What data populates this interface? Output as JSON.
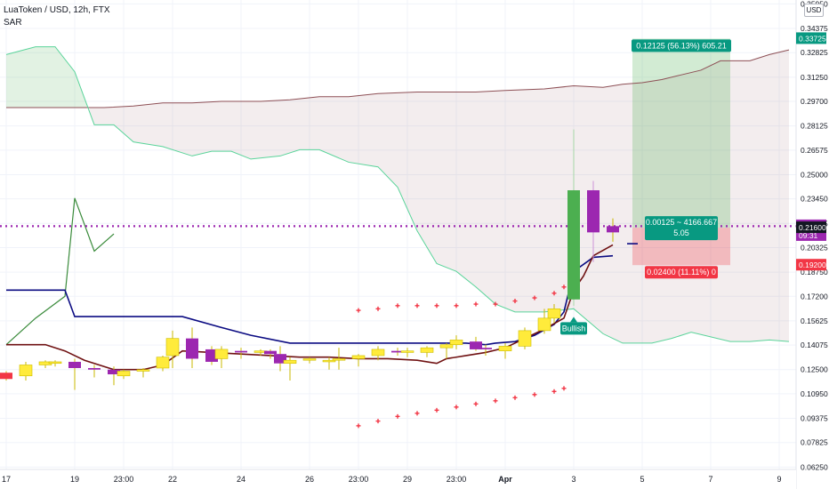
{
  "header": {
    "title": "LuaToken / USD, 12h, FTX",
    "indicator": "SAR",
    "currency_button": "USD"
  },
  "chart_data": {
    "type": "candlestick",
    "symbol": "LuaToken / USD",
    "interval": "12h",
    "exchange": "FTX",
    "y_scale": "linear",
    "ylim": [
      0.061,
      0.362
    ],
    "x_range": [
      0,
      80
    ],
    "grid": true,
    "y_tick_labels": [
      "0.06250",
      "0.07825",
      "0.09375",
      "0.10950",
      "0.12500",
      "0.14075",
      "0.15625",
      "0.17200",
      "0.18750",
      "0.20325",
      "0.21875",
      "0.23450",
      "0.25000",
      "0.26575",
      "0.28125",
      "0.29700",
      "0.31250",
      "0.32825",
      "0.34375",
      "0.35950"
    ],
    "y_tick_values": [
      0.0625,
      0.07825,
      0.09375,
      0.1095,
      0.125,
      0.14075,
      0.15625,
      0.172,
      0.1875,
      0.20325,
      0.21875,
      0.2345,
      0.25,
      0.26575,
      0.28125,
      0.297,
      0.3125,
      0.32825,
      0.34375,
      0.3595
    ],
    "x_tick_labels": [
      {
        "x": 0,
        "label": "17"
      },
      {
        "x": 7,
        "label": "19"
      },
      {
        "x": 12,
        "label": "23:00"
      },
      {
        "x": 17,
        "label": "22"
      },
      {
        "x": 24,
        "label": "24"
      },
      {
        "x": 31,
        "label": "26"
      },
      {
        "x": 36,
        "label": "23:00"
      },
      {
        "x": 41,
        "label": "29"
      },
      {
        "x": 46,
        "label": "23:00"
      },
      {
        "x": 51,
        "label": "Apr"
      },
      {
        "x": 58,
        "label": "3"
      },
      {
        "x": 65,
        "label": "5"
      },
      {
        "x": 72,
        "label": "7"
      },
      {
        "x": 79,
        "label": "9"
      }
    ],
    "candles": [
      {
        "x": 0,
        "o": 0.123,
        "h": 0.124,
        "l": 0.118,
        "c": 0.119
      },
      {
        "x": 2,
        "o": 0.121,
        "h": 0.13,
        "l": 0.118,
        "c": 0.128
      },
      {
        "x": 4,
        "o": 0.128,
        "h": 0.131,
        "l": 0.126,
        "c": 0.13
      },
      {
        "x": 5,
        "o": 0.129,
        "h": 0.131,
        "l": 0.127,
        "c": 0.13
      },
      {
        "x": 7,
        "o": 0.13,
        "h": 0.132,
        "l": 0.112,
        "c": 0.126
      },
      {
        "x": 9,
        "o": 0.126,
        "h": 0.128,
        "l": 0.12,
        "c": 0.125
      },
      {
        "x": 11,
        "o": 0.125,
        "h": 0.127,
        "l": 0.115,
        "c": 0.122
      },
      {
        "x": 12,
        "o": 0.121,
        "h": 0.125,
        "l": 0.119,
        "c": 0.124
      },
      {
        "x": 14,
        "o": 0.124,
        "h": 0.126,
        "l": 0.12,
        "c": 0.125
      },
      {
        "x": 16,
        "o": 0.126,
        "h": 0.134,
        "l": 0.124,
        "c": 0.133
      },
      {
        "x": 17,
        "o": 0.134,
        "h": 0.15,
        "l": 0.126,
        "c": 0.145
      },
      {
        "x": 19,
        "o": 0.145,
        "h": 0.152,
        "l": 0.126,
        "c": 0.132
      },
      {
        "x": 21,
        "o": 0.138,
        "h": 0.14,
        "l": 0.128,
        "c": 0.13
      },
      {
        "x": 22,
        "o": 0.132,
        "h": 0.14,
        "l": 0.126,
        "c": 0.138
      },
      {
        "x": 24,
        "o": 0.137,
        "h": 0.139,
        "l": 0.132,
        "c": 0.136
      },
      {
        "x": 26,
        "o": 0.136,
        "h": 0.138,
        "l": 0.134,
        "c": 0.137
      },
      {
        "x": 27,
        "o": 0.137,
        "h": 0.138,
        "l": 0.132,
        "c": 0.135
      },
      {
        "x": 28,
        "o": 0.135,
        "h": 0.14,
        "l": 0.124,
        "c": 0.129
      },
      {
        "x": 29,
        "o": 0.129,
        "h": 0.133,
        "l": 0.118,
        "c": 0.131
      },
      {
        "x": 31,
        "o": 0.131,
        "h": 0.133,
        "l": 0.129,
        "c": 0.132
      },
      {
        "x": 33,
        "o": 0.13,
        "h": 0.133,
        "l": 0.125,
        "c": 0.131
      },
      {
        "x": 34,
        "o": 0.131,
        "h": 0.139,
        "l": 0.125,
        "c": 0.132
      },
      {
        "x": 36,
        "o": 0.132,
        "h": 0.135,
        "l": 0.127,
        "c": 0.134
      },
      {
        "x": 38,
        "o": 0.134,
        "h": 0.14,
        "l": 0.131,
        "c": 0.138
      },
      {
        "x": 40,
        "o": 0.137,
        "h": 0.139,
        "l": 0.134,
        "c": 0.136
      },
      {
        "x": 41,
        "o": 0.136,
        "h": 0.139,
        "l": 0.133,
        "c": 0.137
      },
      {
        "x": 43,
        "o": 0.136,
        "h": 0.14,
        "l": 0.133,
        "c": 0.139
      },
      {
        "x": 45,
        "o": 0.139,
        "h": 0.142,
        "l": 0.132,
        "c": 0.141
      },
      {
        "x": 46,
        "o": 0.141,
        "h": 0.147,
        "l": 0.138,
        "c": 0.144
      },
      {
        "x": 48,
        "o": 0.143,
        "h": 0.146,
        "l": 0.137,
        "c": 0.138
      },
      {
        "x": 49,
        "o": 0.139,
        "h": 0.141,
        "l": 0.134,
        "c": 0.138
      },
      {
        "x": 51,
        "o": 0.137,
        "h": 0.142,
        "l": 0.132,
        "c": 0.14
      },
      {
        "x": 53,
        "o": 0.14,
        "h": 0.152,
        "l": 0.138,
        "c": 0.15
      },
      {
        "x": 55,
        "o": 0.15,
        "h": 0.164,
        "l": 0.148,
        "c": 0.158
      },
      {
        "x": 56,
        "o": 0.158,
        "h": 0.167,
        "l": 0.155,
        "c": 0.164
      },
      {
        "x": 58,
        "o": 0.17,
        "h": 0.279,
        "l": 0.166,
        "c": 0.24
      },
      {
        "x": 60,
        "o": 0.24,
        "h": 0.246,
        "l": 0.194,
        "c": 0.213
      },
      {
        "x": 62,
        "o": 0.217,
        "h": 0.222,
        "l": 0.207,
        "c": 0.213
      }
    ],
    "series": [
      {
        "role": "cloud_upper",
        "color": "#8d4f55",
        "points": [
          [
            0,
            0.293
          ],
          [
            2,
            0.293
          ],
          [
            4,
            0.293
          ],
          [
            6,
            0.293
          ],
          [
            8,
            0.293
          ],
          [
            10,
            0.293
          ],
          [
            13,
            0.294
          ],
          [
            16,
            0.296
          ],
          [
            19,
            0.296
          ],
          [
            22,
            0.297
          ],
          [
            26,
            0.297
          ],
          [
            29,
            0.298
          ],
          [
            32,
            0.3
          ],
          [
            35,
            0.3
          ],
          [
            38,
            0.302
          ],
          [
            42,
            0.303
          ],
          [
            45,
            0.303
          ],
          [
            48,
            0.303
          ],
          [
            51,
            0.304
          ],
          [
            55,
            0.305
          ],
          [
            58,
            0.307
          ],
          [
            61,
            0.306
          ],
          [
            63,
            0.308
          ],
          [
            65,
            0.309
          ],
          [
            67,
            0.311
          ],
          [
            69,
            0.314
          ],
          [
            71,
            0.317
          ],
          [
            73,
            0.323
          ],
          [
            75,
            0.323
          ],
          [
            76,
            0.323
          ],
          [
            78,
            0.327
          ],
          [
            80,
            0.33
          ]
        ]
      },
      {
        "role": "cloud_lower",
        "color": "#5ad49a",
        "points": [
          [
            0,
            0.327
          ],
          [
            3,
            0.332
          ],
          [
            5,
            0.332
          ],
          [
            7,
            0.316
          ],
          [
            9,
            0.282
          ],
          [
            11,
            0.282
          ],
          [
            13,
            0.271
          ],
          [
            16,
            0.268
          ],
          [
            19,
            0.262
          ],
          [
            21,
            0.265
          ],
          [
            23,
            0.265
          ],
          [
            25,
            0.26
          ],
          [
            28,
            0.262
          ],
          [
            30,
            0.266
          ],
          [
            32,
            0.266
          ],
          [
            35,
            0.258
          ],
          [
            38,
            0.255
          ],
          [
            40,
            0.242
          ],
          [
            42,
            0.214
          ],
          [
            44,
            0.193
          ],
          [
            46,
            0.188
          ],
          [
            48,
            0.178
          ],
          [
            50,
            0.167
          ],
          [
            52,
            0.162
          ],
          [
            55,
            0.162
          ],
          [
            58,
            0.164
          ],
          [
            61,
            0.148
          ],
          [
            63,
            0.142
          ],
          [
            66,
            0.142
          ],
          [
            68,
            0.145
          ],
          [
            70,
            0.149
          ],
          [
            72,
            0.146
          ],
          [
            74,
            0.143
          ],
          [
            76,
            0.143
          ],
          [
            78,
            0.144
          ],
          [
            80,
            0.143
          ]
        ]
      },
      {
        "role": "lagging_span",
        "color": "#3a8b3b",
        "points": [
          [
            0,
            0.141
          ],
          [
            3,
            0.158
          ],
          [
            6,
            0.172
          ],
          [
            7,
            0.235
          ],
          [
            9,
            0.201
          ],
          [
            11,
            0.212
          ]
        ]
      },
      {
        "role": "base_line",
        "color": "#0b0b82",
        "points": [
          [
            0,
            0.176
          ],
          [
            6,
            0.176
          ],
          [
            7,
            0.159
          ],
          [
            18,
            0.159
          ],
          [
            22,
            0.152
          ],
          [
            25,
            0.147
          ],
          [
            29,
            0.142
          ],
          [
            40,
            0.142
          ],
          [
            47,
            0.142
          ],
          [
            49,
            0.141
          ],
          [
            50,
            0.142
          ],
          [
            52,
            0.143
          ],
          [
            54,
            0.147
          ],
          [
            56,
            0.154
          ],
          [
            57,
            0.162
          ],
          [
            58,
            0.188
          ],
          [
            60,
            0.197
          ],
          [
            62,
            0.198
          ]
        ]
      },
      {
        "role": "conversion_line",
        "color": "#6f1112",
        "points": [
          [
            0,
            0.141
          ],
          [
            4,
            0.141
          ],
          [
            6,
            0.137
          ],
          [
            8,
            0.131
          ],
          [
            10,
            0.127
          ],
          [
            11,
            0.125
          ],
          [
            14,
            0.125
          ],
          [
            16,
            0.128
          ],
          [
            18,
            0.137
          ],
          [
            21,
            0.136
          ],
          [
            24,
            0.135
          ],
          [
            27,
            0.134
          ],
          [
            30,
            0.133
          ],
          [
            33,
            0.133
          ],
          [
            36,
            0.132
          ],
          [
            39,
            0.132
          ],
          [
            42,
            0.131
          ],
          [
            44,
            0.129
          ],
          [
            45,
            0.132
          ],
          [
            47,
            0.134
          ],
          [
            49,
            0.136
          ],
          [
            51,
            0.139
          ],
          [
            53,
            0.145
          ],
          [
            55,
            0.151
          ],
          [
            57,
            0.158
          ],
          [
            58,
            0.176
          ],
          [
            59,
            0.185
          ],
          [
            60,
            0.198
          ],
          [
            62,
            0.205
          ]
        ]
      }
    ],
    "sar_above": [
      [
        36,
        0.163
      ],
      [
        38,
        0.164
      ],
      [
        40,
        0.166
      ],
      [
        42,
        0.166
      ],
      [
        44,
        0.166
      ],
      [
        46,
        0.166
      ],
      [
        48,
        0.167
      ],
      [
        50,
        0.167
      ],
      [
        52,
        0.169
      ],
      [
        54,
        0.171
      ],
      [
        56,
        0.174
      ],
      [
        57,
        0.178
      ]
    ],
    "sar_below": [
      [
        36,
        0.089
      ],
      [
        38,
        0.092
      ],
      [
        40,
        0.095
      ],
      [
        42,
        0.097
      ],
      [
        44,
        0.099
      ],
      [
        46,
        0.101
      ],
      [
        48,
        0.103
      ],
      [
        50,
        0.105
      ],
      [
        52,
        0.107
      ],
      [
        54,
        0.109
      ],
      [
        56,
        0.111
      ],
      [
        57,
        0.113
      ]
    ],
    "current_price_line": 0.217,
    "position": {
      "entry": 0.216,
      "target": 0.33725,
      "stop": 0.192,
      "x_start": 64,
      "x_end": 74,
      "target_label": "0.12125 (56.13%) 605.21",
      "entry_label_line1": "0.00125 ~ 4166.667",
      "entry_label_line2": "5.05",
      "stop_label": "0.02400 (11.11%) 0"
    },
    "signal": {
      "x": 58,
      "price": 0.152,
      "label": "Bullish"
    },
    "price_labels": [
      {
        "value": 0.33725,
        "text": "0.33725",
        "bg": "#089981",
        "fg": "#ffffff"
      },
      {
        "value": 0.21725,
        "text": "0.21725",
        "sub": "09:31",
        "bg": "#9c27b0",
        "fg": "#ffffff"
      },
      {
        "value": 0.216,
        "text": "0.21600",
        "bg": "#131722",
        "fg": "#ffffff"
      },
      {
        "value": 0.192,
        "text": "0.19200",
        "bg": "#f23645",
        "fg": "#ffffff"
      }
    ]
  }
}
